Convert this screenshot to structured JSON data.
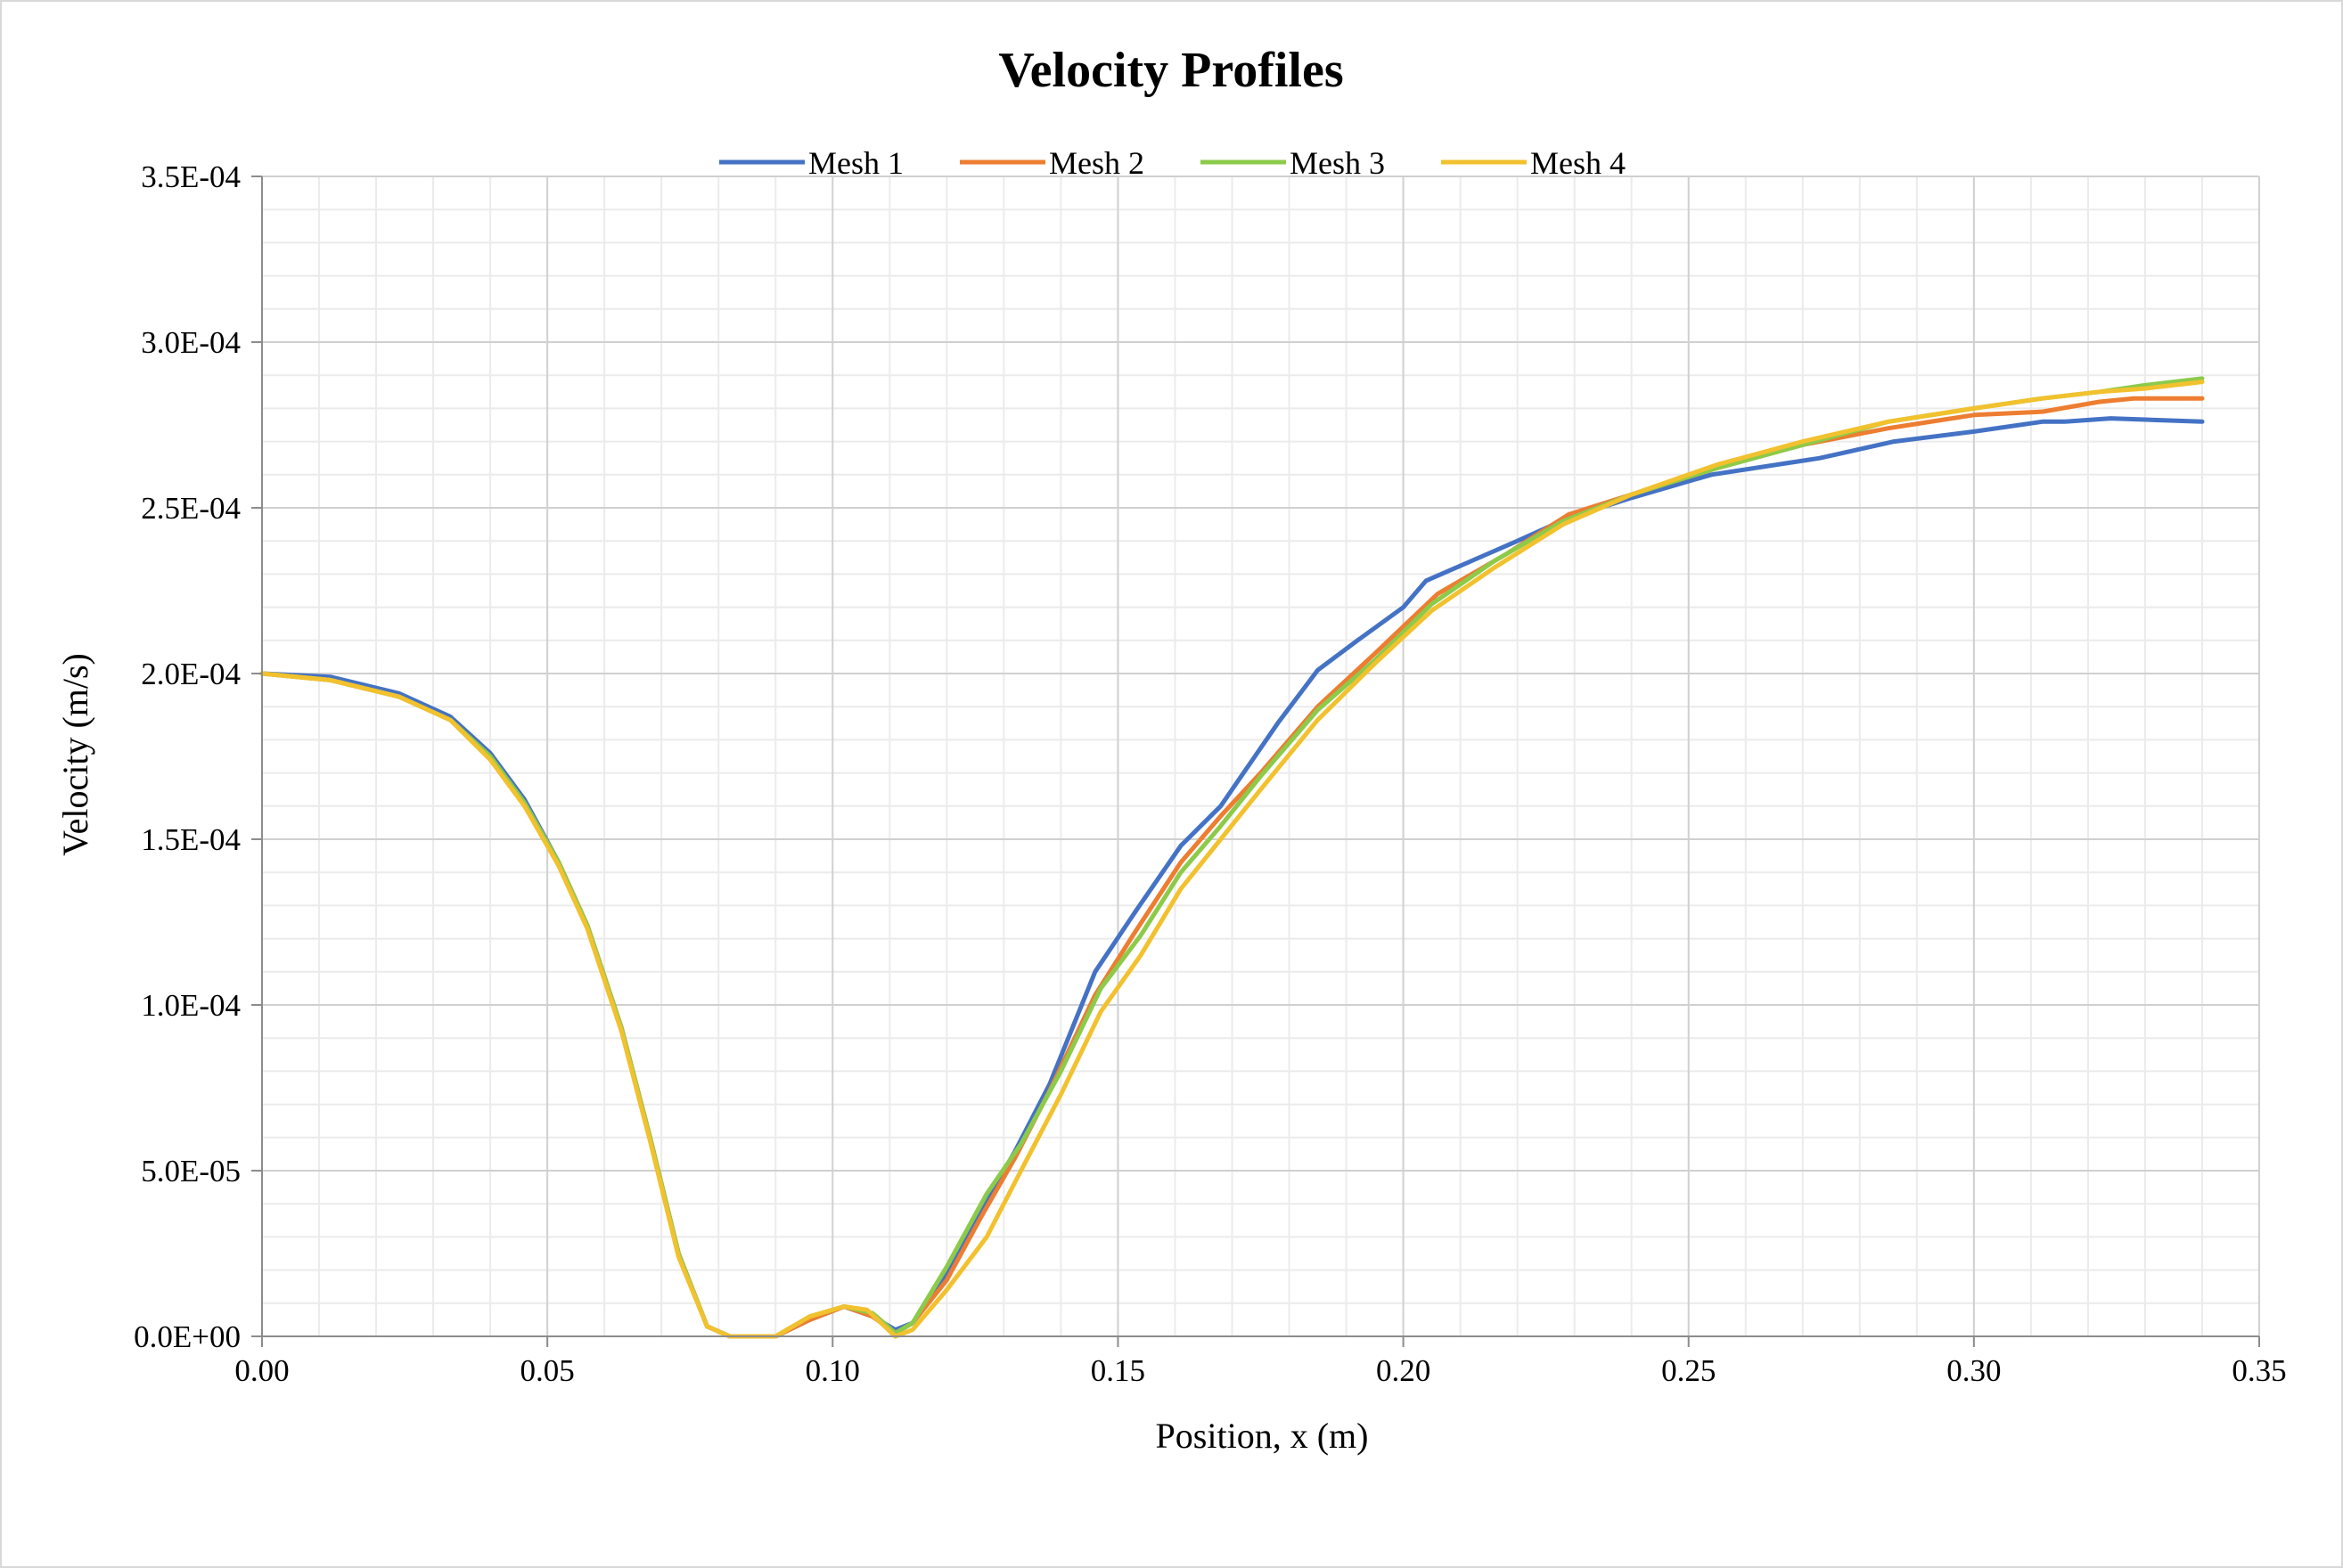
{
  "chart_data": {
    "type": "line",
    "title": "Velocity Profiles",
    "xlabel": "Position, x (m)",
    "ylabel": "Velocity (m/s)",
    "xlim": [
      0,
      0.35
    ],
    "ylim": [
      0,
      0.00035
    ],
    "x_ticks": [
      "0.00",
      "0.05",
      "0.10",
      "0.15",
      "0.20",
      "0.25",
      "0.30",
      "0.35"
    ],
    "y_ticks": [
      "0.0E+00",
      "5.0E-05",
      "1.0E-04",
      "1.5E-04",
      "2.0E-04",
      "2.5E-04",
      "3.0E-04",
      "3.5E-04"
    ],
    "grid": "major and minor",
    "legend_position": "top",
    "series": [
      {
        "name": "Mesh 1",
        "color": "#4472C4",
        "points": [
          [
            0,
            0.0002
          ],
          [
            0.012,
            0.000199
          ],
          [
            0.024,
            0.000194
          ],
          [
            0.033,
            0.000187
          ],
          [
            0.04,
            0.000176
          ],
          [
            0.046,
            0.000162
          ],
          [
            0.052,
            0.000143
          ],
          [
            0.057,
            0.000124
          ],
          [
            0.063,
            9.3e-05
          ],
          [
            0.068,
            6e-05
          ],
          [
            0.073,
            2.5e-05
          ],
          [
            0.078,
            3e-06
          ],
          [
            0.082,
            0.0
          ],
          [
            0.09,
            0.0
          ],
          [
            0.096,
            5e-06
          ],
          [
            0.102,
            9e-06
          ],
          [
            0.107,
            6e-06
          ],
          [
            0.111,
            2e-06
          ],
          [
            0.114,
            4e-06
          ],
          [
            0.12,
            1.9e-05
          ],
          [
            0.126,
            3.8e-05
          ],
          [
            0.132,
            5.6e-05
          ],
          [
            0.138,
            7.6e-05
          ],
          [
            0.146,
            0.00011
          ],
          [
            0.153,
            0.000128
          ],
          [
            0.161,
            0.000148
          ],
          [
            0.168,
            0.00016
          ],
          [
            0.172,
            0.00017
          ],
          [
            0.178,
            0.000185
          ],
          [
            0.185,
            0.000201
          ],
          [
            0.192,
            0.00021
          ],
          [
            0.2,
            0.00022
          ],
          [
            0.204,
            0.000228
          ],
          [
            0.212,
            0.000234
          ],
          [
            0.22,
            0.00024
          ],
          [
            0.229,
            0.000247
          ],
          [
            0.24,
            0.000253
          ],
          [
            0.254,
            0.00026
          ],
          [
            0.273,
            0.000265
          ],
          [
            0.286,
            0.00027
          ],
          [
            0.3,
            0.000273
          ],
          [
            0.312,
            0.000276
          ],
          [
            0.316,
            0.000276
          ],
          [
            0.324,
            0.000277
          ],
          [
            0.34,
            0.000276
          ]
        ]
      },
      {
        "name": "Mesh 2",
        "color": "#ED7D31",
        "points": [
          [
            0,
            0.0002
          ],
          [
            0.012,
            0.000198
          ],
          [
            0.024,
            0.000193
          ],
          [
            0.033,
            0.000186
          ],
          [
            0.04,
            0.000175
          ],
          [
            0.046,
            0.000161
          ],
          [
            0.052,
            0.000143
          ],
          [
            0.057,
            0.000124
          ],
          [
            0.063,
            9.3e-05
          ],
          [
            0.068,
            6e-05
          ],
          [
            0.073,
            2.5e-05
          ],
          [
            0.078,
            3e-06
          ],
          [
            0.082,
            0.0
          ],
          [
            0.09,
            0.0
          ],
          [
            0.096,
            5e-06
          ],
          [
            0.102,
            9e-06
          ],
          [
            0.107,
            6e-06
          ],
          [
            0.111,
            1e-06
          ],
          [
            0.114,
            4e-06
          ],
          [
            0.12,
            1.7e-05
          ],
          [
            0.126,
            3.6e-05
          ],
          [
            0.132,
            5.4e-05
          ],
          [
            0.138,
            7.4e-05
          ],
          [
            0.146,
            0.000103
          ],
          [
            0.153,
            0.000122
          ],
          [
            0.161,
            0.000143
          ],
          [
            0.168,
            0.000157
          ],
          [
            0.175,
            0.00017
          ],
          [
            0.185,
            0.00019
          ],
          [
            0.195,
            0.000206
          ],
          [
            0.206,
            0.000224
          ],
          [
            0.218,
            0.000236
          ],
          [
            0.229,
            0.000248
          ],
          [
            0.24,
            0.000254
          ],
          [
            0.255,
            0.000262
          ],
          [
            0.27,
            0.000269
          ],
          [
            0.285,
            0.000274
          ],
          [
            0.3,
            0.000278
          ],
          [
            0.312,
            0.000279
          ],
          [
            0.322,
            0.000282
          ],
          [
            0.328,
            0.000283
          ],
          [
            0.34,
            0.000283
          ]
        ]
      },
      {
        "name": "Mesh 3",
        "color": "#8CCB4A",
        "points": [
          [
            0,
            0.0002
          ],
          [
            0.012,
            0.000198
          ],
          [
            0.024,
            0.000193
          ],
          [
            0.033,
            0.000186
          ],
          [
            0.04,
            0.000175
          ],
          [
            0.046,
            0.000161
          ],
          [
            0.052,
            0.000143
          ],
          [
            0.057,
            0.000124
          ],
          [
            0.063,
            9.3e-05
          ],
          [
            0.068,
            6e-05
          ],
          [
            0.073,
            2.5e-05
          ],
          [
            0.078,
            3e-06
          ],
          [
            0.082,
            0.0
          ],
          [
            0.09,
            0.0
          ],
          [
            0.096,
            6e-06
          ],
          [
            0.102,
            9e-06
          ],
          [
            0.107,
            7e-06
          ],
          [
            0.111,
            1e-06
          ],
          [
            0.114,
            4e-06
          ],
          [
            0.12,
            2.1e-05
          ],
          [
            0.127,
            4.3e-05
          ],
          [
            0.133,
            5.8e-05
          ],
          [
            0.14,
            8e-05
          ],
          [
            0.147,
            0.000105
          ],
          [
            0.154,
            0.000121
          ],
          [
            0.161,
            0.00014
          ],
          [
            0.168,
            0.000154
          ],
          [
            0.175,
            0.000169
          ],
          [
            0.185,
            0.000189
          ],
          [
            0.195,
            0.000204
          ],
          [
            0.205,
            0.000221
          ],
          [
            0.216,
            0.000234
          ],
          [
            0.228,
            0.000246
          ],
          [
            0.24,
            0.000254
          ],
          [
            0.255,
            0.000262
          ],
          [
            0.27,
            0.000269
          ],
          [
            0.285,
            0.000276
          ],
          [
            0.3,
            0.00028
          ],
          [
            0.312,
            0.000283
          ],
          [
            0.322,
            0.000285
          ],
          [
            0.33,
            0.000287
          ],
          [
            0.34,
            0.000289
          ]
        ]
      },
      {
        "name": "Mesh 4",
        "color": "#F2C12E",
        "points": [
          [
            0,
            0.0002
          ],
          [
            0.012,
            0.000198
          ],
          [
            0.024,
            0.000193
          ],
          [
            0.033,
            0.000186
          ],
          [
            0.04,
            0.000174
          ],
          [
            0.046,
            0.00016
          ],
          [
            0.052,
            0.000142
          ],
          [
            0.057,
            0.000123
          ],
          [
            0.063,
            9.2e-05
          ],
          [
            0.068,
            5.9e-05
          ],
          [
            0.073,
            2.4e-05
          ],
          [
            0.078,
            3e-06
          ],
          [
            0.082,
            0.0
          ],
          [
            0.09,
            0.0
          ],
          [
            0.096,
            6e-06
          ],
          [
            0.102,
            9e-06
          ],
          [
            0.106,
            8e-06
          ],
          [
            0.111,
            0.0
          ],
          [
            0.114,
            2e-06
          ],
          [
            0.12,
            1.4e-05
          ],
          [
            0.127,
            3e-05
          ],
          [
            0.133,
            5e-05
          ],
          [
            0.14,
            7.3e-05
          ],
          [
            0.147,
            9.8e-05
          ],
          [
            0.154,
            0.000115
          ],
          [
            0.161,
            0.000135
          ],
          [
            0.168,
            0.00015
          ],
          [
            0.175,
            0.000165
          ],
          [
            0.185,
            0.000186
          ],
          [
            0.195,
            0.000203
          ],
          [
            0.205,
            0.000219
          ],
          [
            0.216,
            0.000232
          ],
          [
            0.228,
            0.000245
          ],
          [
            0.24,
            0.000254
          ],
          [
            0.255,
            0.000263
          ],
          [
            0.27,
            0.00027
          ],
          [
            0.285,
            0.000276
          ],
          [
            0.3,
            0.00028
          ],
          [
            0.312,
            0.000283
          ],
          [
            0.322,
            0.000285
          ],
          [
            0.33,
            0.000286
          ],
          [
            0.34,
            0.000288
          ]
        ]
      }
    ]
  }
}
